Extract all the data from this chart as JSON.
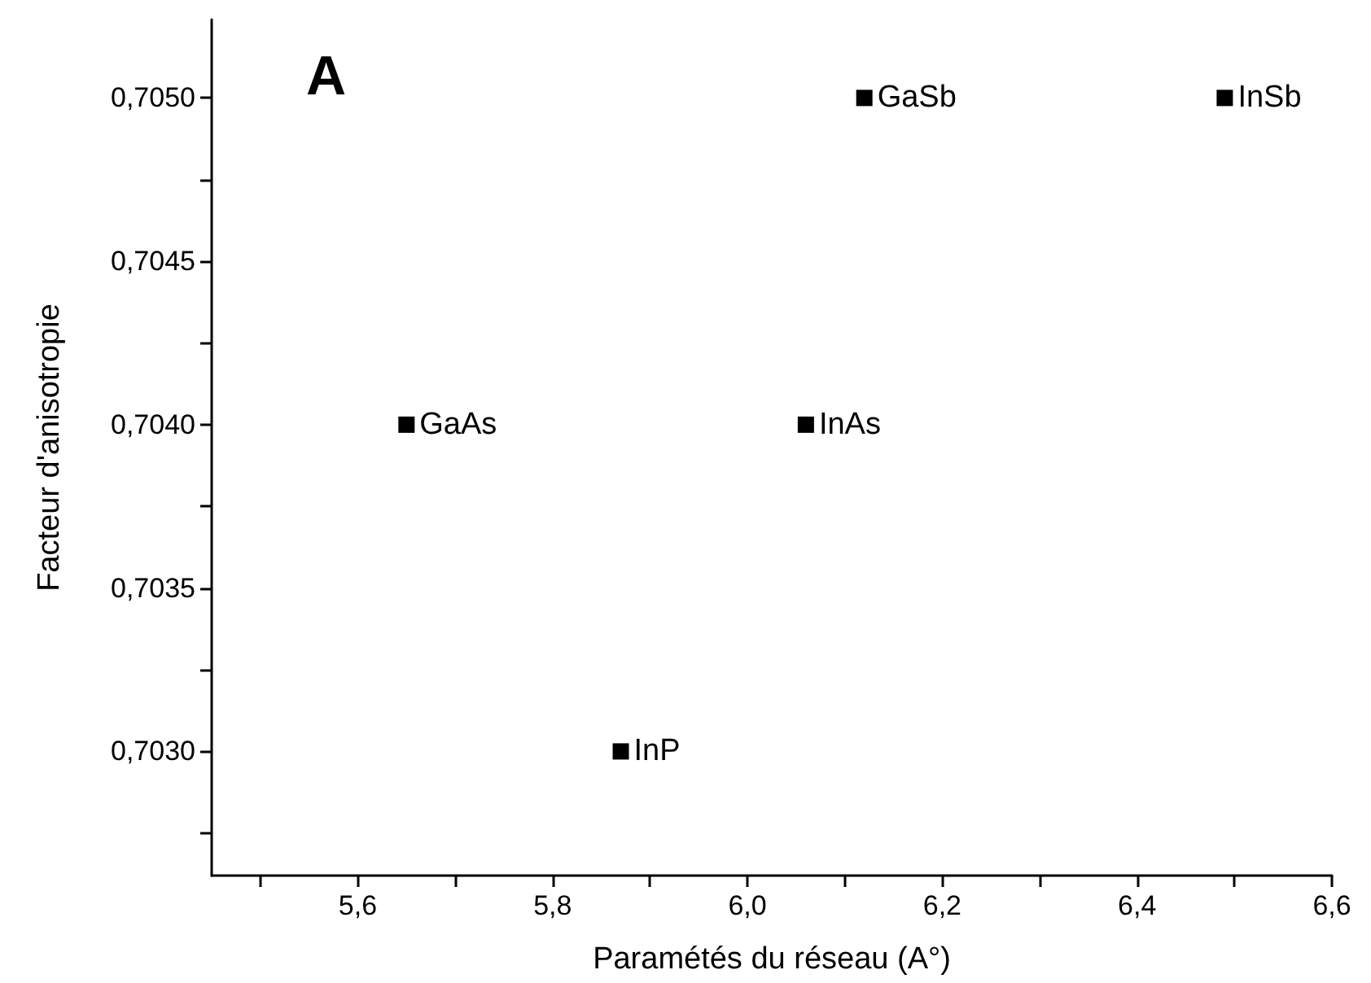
{
  "chart_data": {
    "type": "scatter",
    "xlabel": "Paramétés du réseau (A°)",
    "ylabel": "Facteur d'anisotropie",
    "x": [
      5.65,
      5.87,
      6.06,
      6.12,
      6.49
    ],
    "values": [
      0.704,
      0.703,
      0.704,
      0.705,
      0.705
    ],
    "color": "#000000",
    "marker": "square",
    "xlim": [
      5.45,
      6.6
    ],
    "xticks": [
      {
        "value": 5.5,
        "label": null
      },
      {
        "value": 5.6,
        "label": "5,6"
      },
      {
        "value": 5.7,
        "label": null
      },
      {
        "value": 5.8,
        "label": "5,8"
      },
      {
        "value": 5.9,
        "label": null
      },
      {
        "value": 6.0,
        "label": "6,0"
      },
      {
        "value": 6.1,
        "label": null
      },
      {
        "value": 6.2,
        "label": "6,2"
      },
      {
        "value": 6.3,
        "label": null
      },
      {
        "value": 6.4,
        "label": "6,4"
      },
      {
        "value": 6.5,
        "label": null
      },
      {
        "value": 6.6,
        "label": "6,6"
      }
    ],
    "ylim": [
      0.70262,
      0.70524
    ],
    "yticks": [
      {
        "value": 0.70275,
        "label": null
      },
      {
        "value": 0.703,
        "label": "0,7030"
      },
      {
        "value": 0.70325,
        "label": null
      },
      {
        "value": 0.7035,
        "label": "0,7035"
      },
      {
        "value": 0.70375,
        "label": null
      },
      {
        "value": 0.704,
        "label": "0,7040"
      },
      {
        "value": 0.70425,
        "label": null
      },
      {
        "value": 0.7045,
        "label": "0,7045"
      },
      {
        "value": 0.70475,
        "label": null
      },
      {
        "value": 0.705,
        "label": "0,7050"
      }
    ],
    "annotations": [
      "A",
      {
        "text": "GaAs",
        "x": 5.65,
        "y": 0.704
      },
      {
        "text": "InP",
        "x": 5.87,
        "y": 0.703
      },
      {
        "text": "InAs",
        "x": 6.06,
        "y": 0.704
      },
      {
        "text": "GaSb",
        "x": 6.12,
        "y": 0.705
      },
      {
        "text": "InSb",
        "x": 6.49,
        "y": 0.705
      }
    ]
  }
}
